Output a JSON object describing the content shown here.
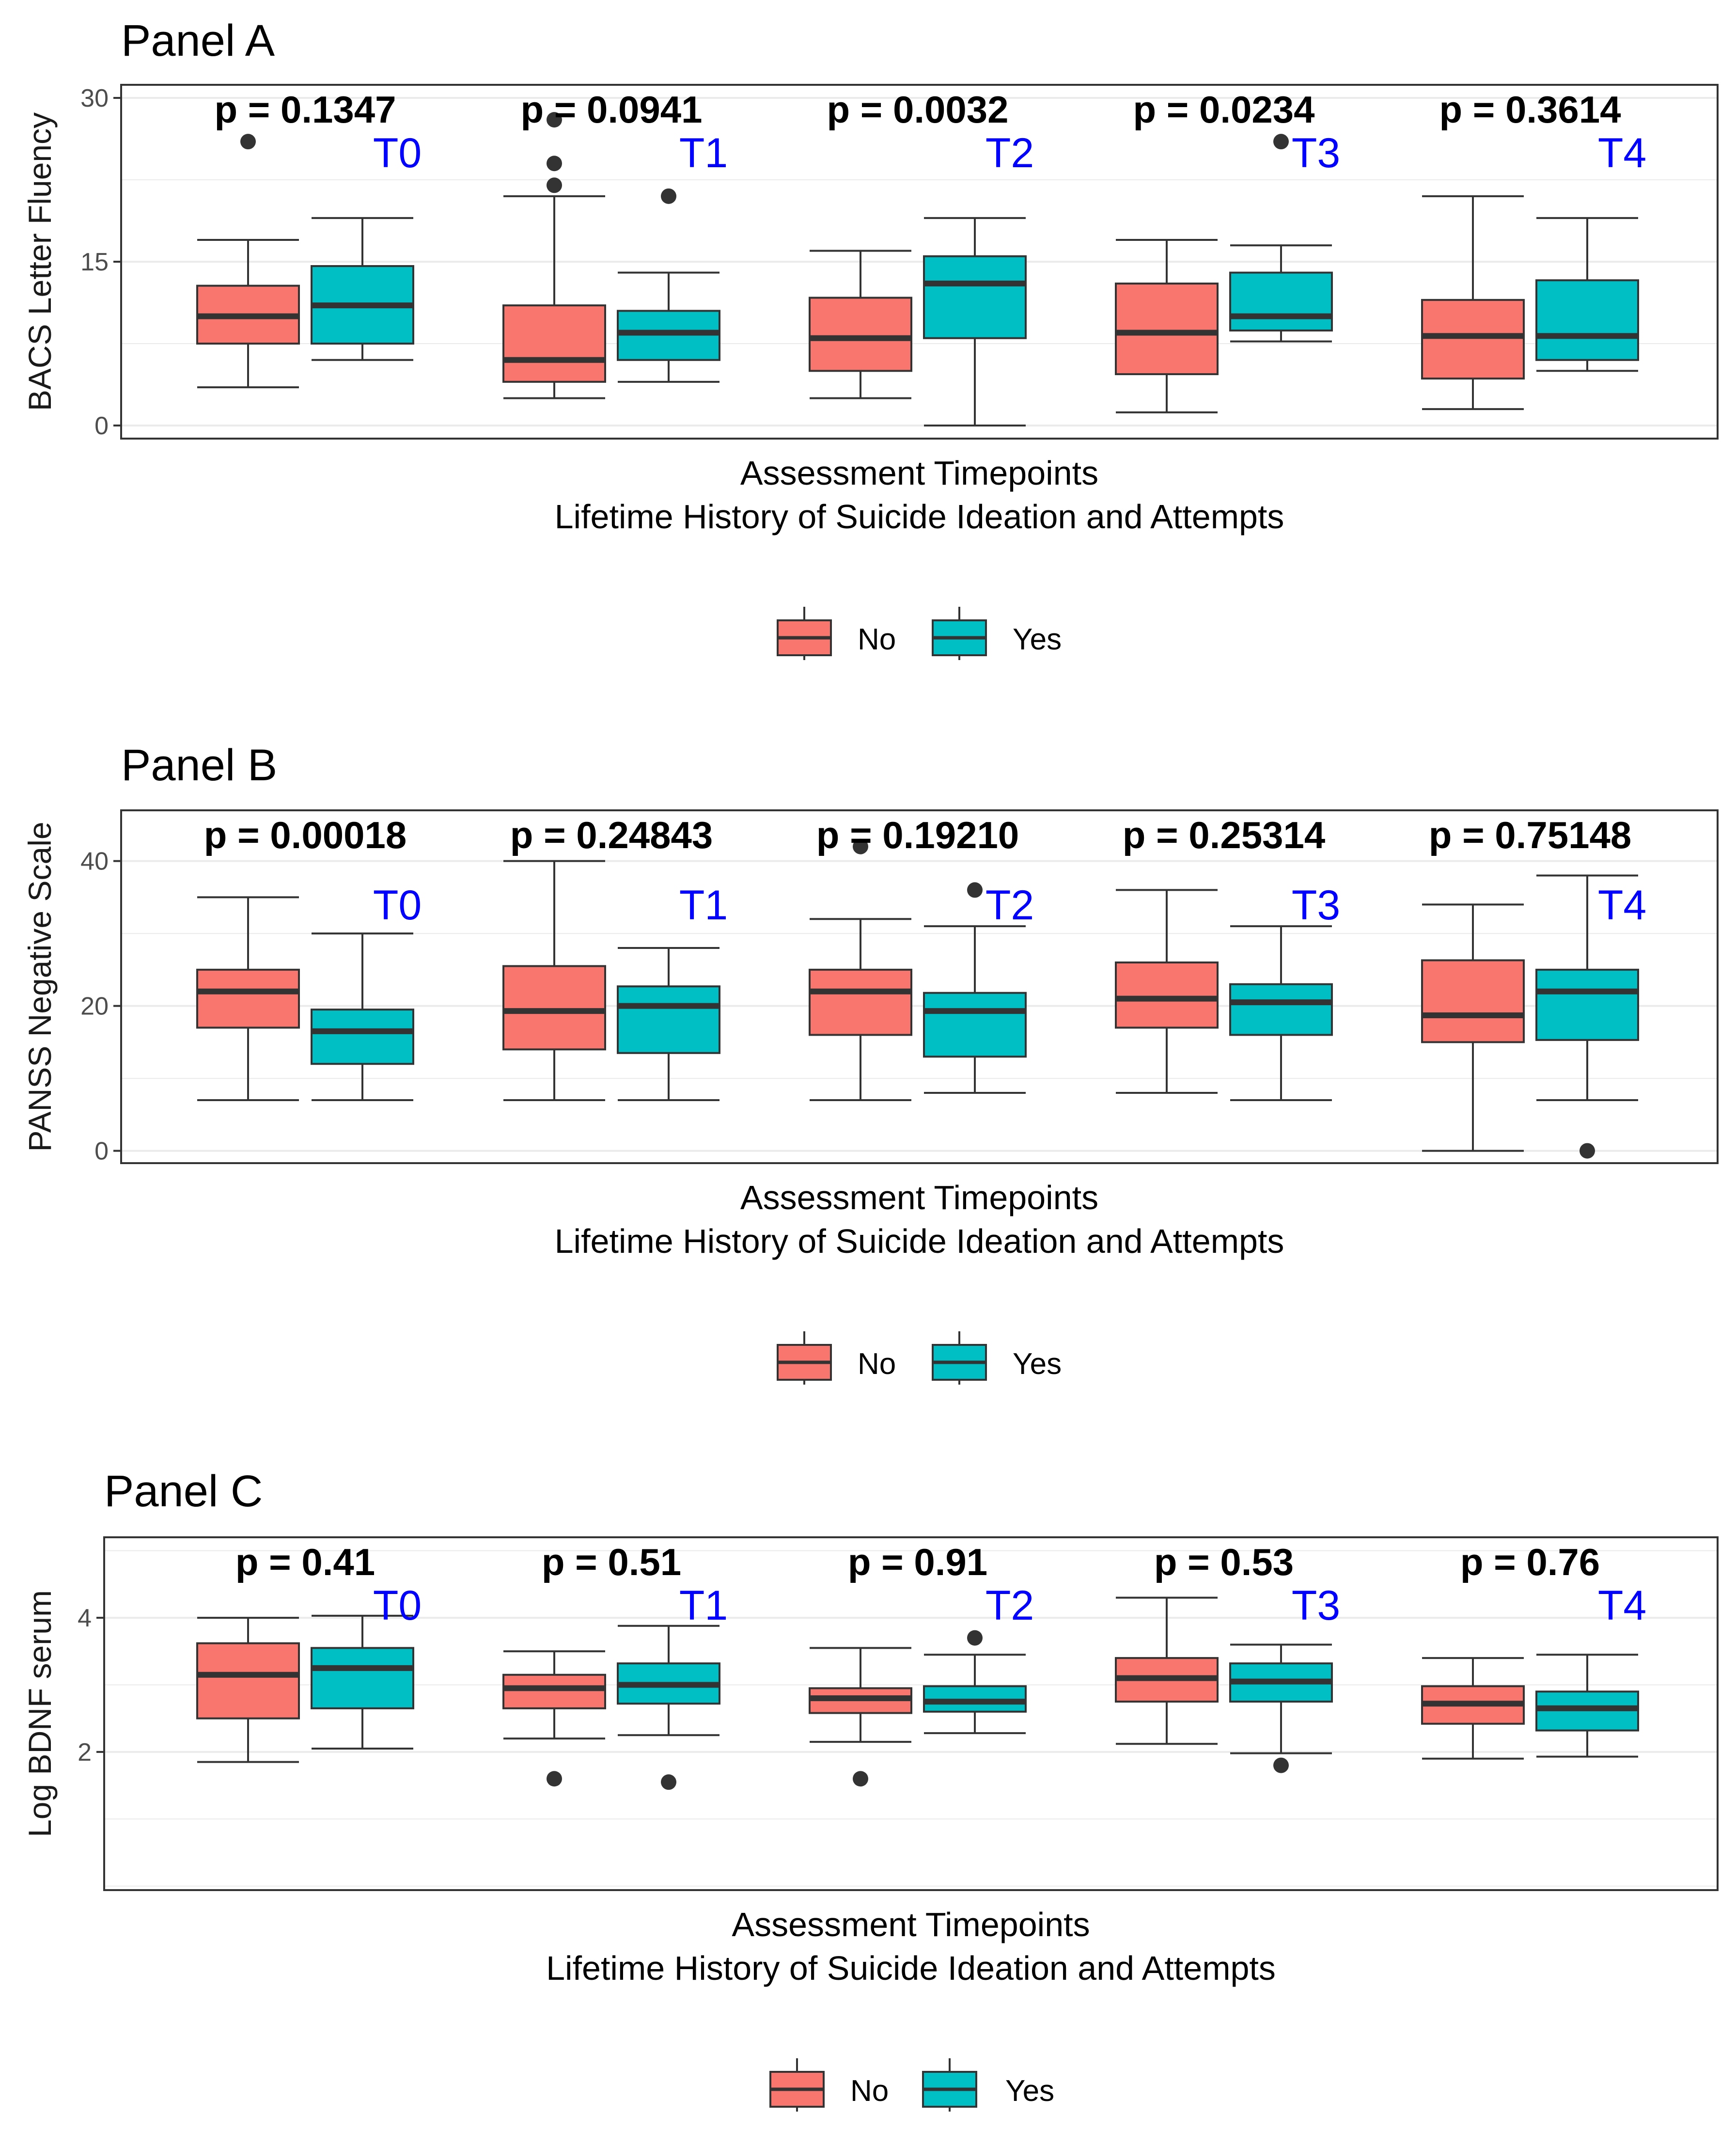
{
  "colors": {
    "no": "#F8766D",
    "yes": "#00BFC4",
    "timepoint_label": "#0000FF",
    "grid": "#EBEBEB",
    "outline": "#333333"
  },
  "chart_data": [
    {
      "type": "box",
      "title": "Panel A",
      "ylabel": "BACS Letter Fluency",
      "xlabel": "Assessment Timepoints",
      "xlabel2": "Lifetime History of Suicide Ideation and Attempts",
      "ylim": [
        -1.2,
        31.2
      ],
      "yticks": [
        0,
        15,
        30
      ],
      "legend": {
        "position": "bottom",
        "entries": [
          "No",
          "Yes"
        ]
      },
      "groups": [
        {
          "timepoint": "T0",
          "p_label": "p = 0.1347",
          "no": {
            "min": 3.5,
            "q1": 7.5,
            "median": 10,
            "q3": 12.8,
            "max": 17,
            "outliers": [
              26
            ]
          },
          "yes": {
            "min": 6,
            "q1": 7.5,
            "median": 11,
            "q3": 14.6,
            "max": 19,
            "outliers": []
          }
        },
        {
          "timepoint": "T1",
          "p_label": "p = 0.0941",
          "no": {
            "min": 2.5,
            "q1": 4,
            "median": 6,
            "q3": 11,
            "max": 21,
            "outliers": [
              22,
              24,
              28
            ]
          },
          "yes": {
            "min": 4,
            "q1": 6,
            "median": 8.5,
            "q3": 10.5,
            "max": 14,
            "outliers": [
              21
            ]
          }
        },
        {
          "timepoint": "T2",
          "p_label": "p = 0.0032",
          "no": {
            "min": 2.5,
            "q1": 5,
            "median": 8,
            "q3": 11.7,
            "max": 16,
            "outliers": []
          },
          "yes": {
            "min": 0,
            "q1": 8,
            "median": 13,
            "q3": 15.5,
            "max": 19,
            "outliers": []
          }
        },
        {
          "timepoint": "T3",
          "p_label": "p = 0.0234",
          "no": {
            "min": 1.2,
            "q1": 4.7,
            "median": 8.5,
            "q3": 13,
            "max": 17,
            "outliers": []
          },
          "yes": {
            "min": 7.7,
            "q1": 8.7,
            "median": 10,
            "q3": 14,
            "max": 16.5,
            "outliers": [
              26
            ]
          }
        },
        {
          "timepoint": "T4",
          "p_label": "p = 0.3614",
          "no": {
            "min": 1.5,
            "q1": 4.3,
            "median": 8.2,
            "q3": 11.5,
            "max": 21,
            "outliers": []
          },
          "yes": {
            "min": 5,
            "q1": 6,
            "median": 8.2,
            "q3": 13.3,
            "max": 19,
            "outliers": []
          }
        }
      ]
    },
    {
      "type": "box",
      "title": "Panel B",
      "ylabel": "PANSS Negative Scale",
      "xlabel": "Assessment Timepoints",
      "xlabel2": "Lifetime History of Suicide Ideation and Attempts",
      "ylim": [
        -1.7,
        47
      ],
      "yticks": [
        0,
        20,
        40
      ],
      "legend": {
        "position": "bottom",
        "entries": [
          "No",
          "Yes"
        ]
      },
      "groups": [
        {
          "timepoint": "T0",
          "p_label": "p = 0.00018",
          "no": {
            "min": 7,
            "q1": 17,
            "median": 22,
            "q3": 25,
            "max": 35,
            "outliers": []
          },
          "yes": {
            "min": 7,
            "q1": 12,
            "median": 16.5,
            "q3": 19.5,
            "max": 30,
            "outliers": []
          }
        },
        {
          "timepoint": "T1",
          "p_label": "p = 0.24843",
          "no": {
            "min": 7,
            "q1": 14,
            "median": 19.3,
            "q3": 25.5,
            "max": 40,
            "outliers": []
          },
          "yes": {
            "min": 7,
            "q1": 13.5,
            "median": 20,
            "q3": 22.7,
            "max": 28,
            "outliers": []
          }
        },
        {
          "timepoint": "T2",
          "p_label": "p = 0.19210",
          "no": {
            "min": 7,
            "q1": 16,
            "median": 22,
            "q3": 25,
            "max": 32,
            "outliers": [
              42
            ]
          },
          "yes": {
            "min": 8,
            "q1": 13,
            "median": 19.3,
            "q3": 21.8,
            "max": 31,
            "outliers": [
              36
            ]
          }
        },
        {
          "timepoint": "T3",
          "p_label": "p = 0.25314",
          "no": {
            "min": 8,
            "q1": 17,
            "median": 21,
            "q3": 26,
            "max": 36,
            "outliers": []
          },
          "yes": {
            "min": 7,
            "q1": 16,
            "median": 20.5,
            "q3": 23,
            "max": 31,
            "outliers": []
          }
        },
        {
          "timepoint": "T4",
          "p_label": "p = 0.75148",
          "no": {
            "min": 0,
            "q1": 15,
            "median": 18.7,
            "q3": 26.3,
            "max": 34,
            "outliers": []
          },
          "yes": {
            "min": 7,
            "q1": 15.3,
            "median": 22,
            "q3": 25,
            "max": 38,
            "outliers": [
              0
            ]
          }
        }
      ]
    },
    {
      "type": "box",
      "title": "Panel C",
      "ylabel": "Log BDNF serum",
      "xlabel": "Assessment Timepoints",
      "xlabel2": "Lifetime History of Suicide Ideation and Attempts",
      "ylim": [
        -0.06,
        5.2
      ],
      "yticks": [
        2,
        4
      ],
      "legend": {
        "position": "bottom",
        "entries": [
          "No",
          "Yes"
        ]
      },
      "groups": [
        {
          "timepoint": "T0",
          "p_label": "p = 0.41",
          "no": {
            "min": 1.85,
            "q1": 2.5,
            "median": 3.15,
            "q3": 3.62,
            "max": 4.0,
            "outliers": []
          },
          "yes": {
            "min": 2.05,
            "q1": 2.65,
            "median": 3.25,
            "q3": 3.55,
            "max": 4.03,
            "outliers": []
          }
        },
        {
          "timepoint": "T1",
          "p_label": "p = 0.51",
          "no": {
            "min": 2.2,
            "q1": 2.65,
            "median": 2.95,
            "q3": 3.15,
            "max": 3.5,
            "outliers": [
              1.6
            ]
          },
          "yes": {
            "min": 2.25,
            "q1": 2.72,
            "median": 3.0,
            "q3": 3.32,
            "max": 3.88,
            "outliers": [
              1.55
            ]
          }
        },
        {
          "timepoint": "T2",
          "p_label": "p = 0.91",
          "no": {
            "min": 2.15,
            "q1": 2.58,
            "median": 2.8,
            "q3": 2.95,
            "max": 3.55,
            "outliers": [
              1.6
            ]
          },
          "yes": {
            "min": 2.28,
            "q1": 2.6,
            "median": 2.75,
            "q3": 2.98,
            "max": 3.45,
            "outliers": [
              3.7
            ]
          }
        },
        {
          "timepoint": "T3",
          "p_label": "p = 0.53",
          "no": {
            "min": 2.12,
            "q1": 2.75,
            "median": 3.1,
            "q3": 3.4,
            "max": 4.3,
            "outliers": []
          },
          "yes": {
            "min": 1.98,
            "q1": 2.75,
            "median": 3.05,
            "q3": 3.32,
            "max": 3.6,
            "outliers": [
              1.8
            ]
          }
        },
        {
          "timepoint": "T4",
          "p_label": "p = 0.76",
          "no": {
            "min": 1.9,
            "q1": 2.42,
            "median": 2.72,
            "q3": 2.98,
            "max": 3.4,
            "outliers": []
          },
          "yes": {
            "min": 1.93,
            "q1": 2.32,
            "median": 2.65,
            "q3": 2.9,
            "max": 3.45,
            "outliers": []
          }
        }
      ]
    }
  ]
}
